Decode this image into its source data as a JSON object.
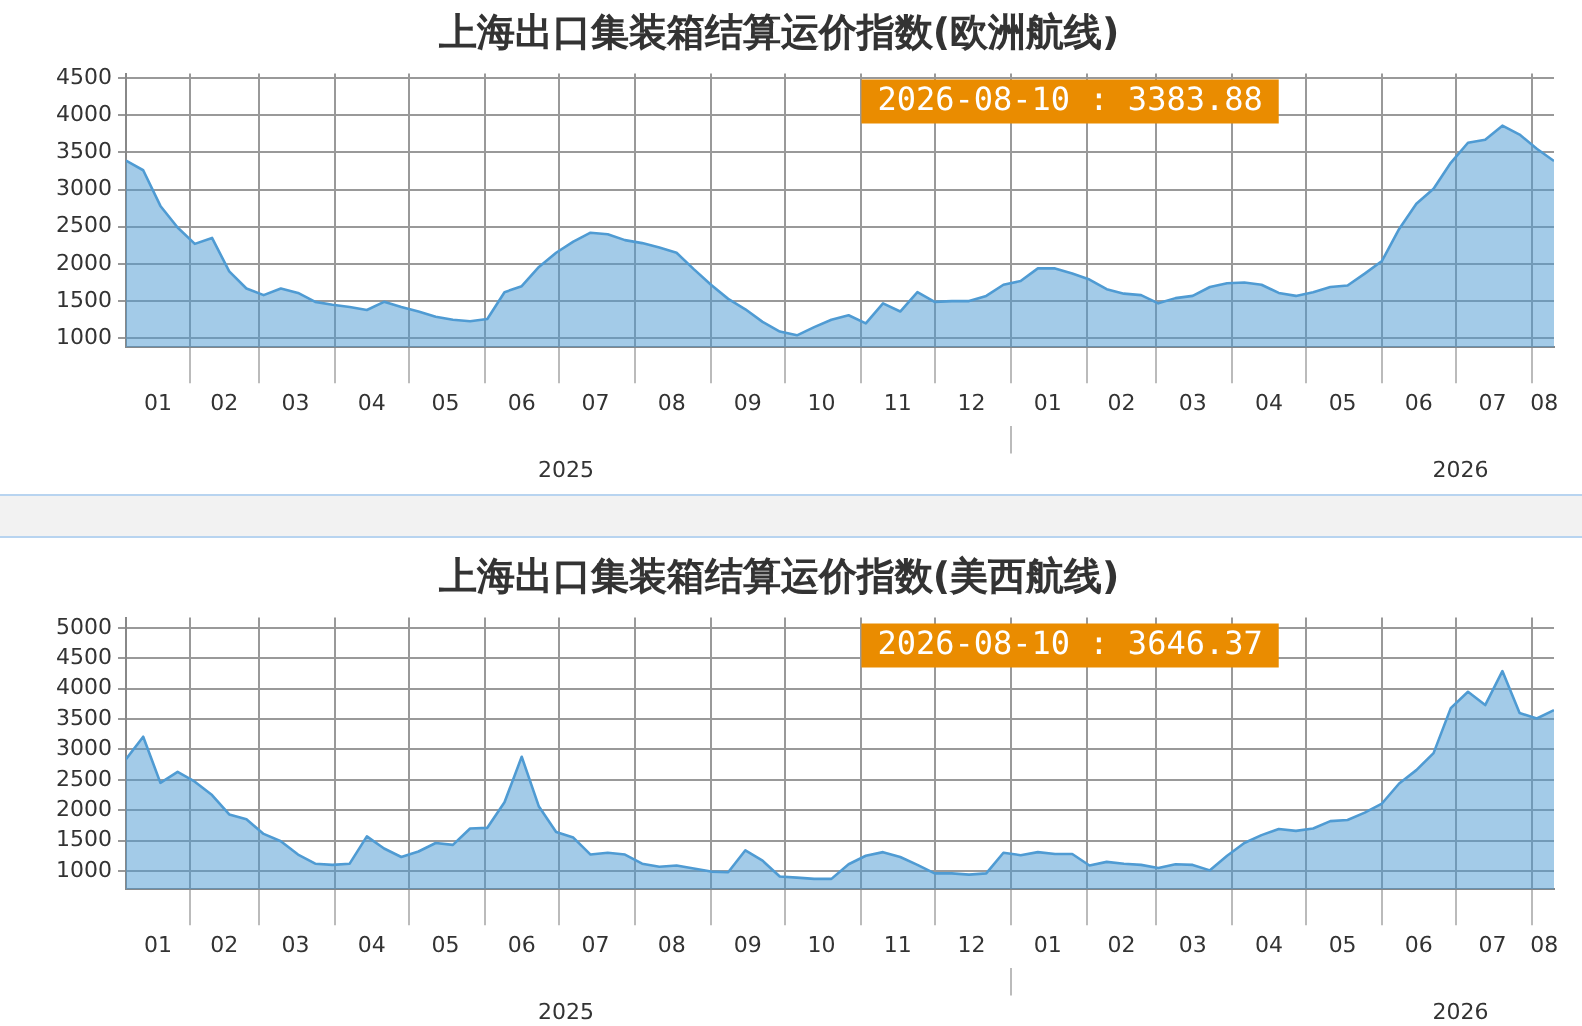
{
  "chart_data": [
    {
      "type": "area",
      "title": "上海出口集装箱结算运价指数(欧洲航线)",
      "x": [
        "2025-01-06",
        "2025-01-13",
        "2025-01-20",
        "2025-01-27",
        "2025-02-03",
        "2025-02-10",
        "2025-02-17",
        "2025-02-24",
        "2025-03-03",
        "2025-03-10",
        "2025-03-17",
        "2025-03-24",
        "2025-03-31",
        "2025-04-07",
        "2025-04-14",
        "2025-04-21",
        "2025-04-28",
        "2025-05-05",
        "2025-05-12",
        "2025-05-19",
        "2025-05-26",
        "2025-06-02",
        "2025-06-09",
        "2025-06-16",
        "2025-06-23",
        "2025-06-30",
        "2025-07-07",
        "2025-07-14",
        "2025-07-21",
        "2025-07-28",
        "2025-08-04",
        "2025-08-11",
        "2025-08-18",
        "2025-08-25",
        "2025-09-01",
        "2025-09-08",
        "2025-09-15",
        "2025-09-22",
        "2025-09-29",
        "2025-10-06",
        "2025-10-13",
        "2025-10-20",
        "2025-10-27",
        "2025-11-03",
        "2025-11-10",
        "2025-11-17",
        "2025-11-24",
        "2025-12-01",
        "2025-12-08",
        "2025-12-15",
        "2025-12-22",
        "2025-12-29",
        "2026-01-05",
        "2026-01-12",
        "2026-01-19",
        "2026-01-26",
        "2026-02-02",
        "2026-02-09",
        "2026-02-16",
        "2026-02-23",
        "2026-03-02",
        "2026-03-09",
        "2026-03-16",
        "2026-03-23",
        "2026-03-30",
        "2026-04-06",
        "2026-04-13",
        "2026-04-20",
        "2026-04-27",
        "2026-05-04",
        "2026-05-11",
        "2026-05-18",
        "2026-05-25",
        "2026-06-01",
        "2026-06-08",
        "2026-06-15",
        "2026-06-22",
        "2026-06-29",
        "2026-07-06",
        "2026-07-13",
        "2026-07-20",
        "2026-07-27",
        "2026-08-03",
        "2026-08-10"
      ],
      "series": [
        {
          "color": "#4f9bd3",
          "values": [
            3390,
            3260,
            2780,
            2490,
            2270,
            2350,
            1900,
            1670,
            1580,
            1670,
            1610,
            1490,
            1450,
            1420,
            1380,
            1490,
            1420,
            1360,
            1290,
            1250,
            1230,
            1260,
            1620,
            1700,
            1960,
            2150,
            2300,
            2420,
            2400,
            2320,
            2280,
            2220,
            2150,
            1930,
            1720,
            1530,
            1390,
            1220,
            1090,
            1040,
            1150,
            1250,
            1310,
            1200,
            1470,
            1360,
            1620,
            1490,
            1500,
            1500,
            1570,
            1720,
            1770,
            1940,
            1940,
            1870,
            1790,
            1660,
            1600,
            1580,
            1470,
            1540,
            1570,
            1690,
            1740,
            1750,
            1720,
            1610,
            1570,
            1620,
            1690,
            1710,
            1870,
            2040,
            2470,
            2810,
            3010,
            3360,
            3630,
            3670,
            3860,
            3740,
            3550,
            3383.88
          ]
        }
      ],
      "xlim": [
        "2025-01-06",
        "2026-08-10"
      ],
      "xticks": [
        {
          "value": "2025-01-19",
          "label": "01"
        },
        {
          "value": "2025-02-01",
          "label": null
        },
        {
          "value": "2025-02-15",
          "label": "02"
        },
        {
          "value": "2025-03-01",
          "label": null
        },
        {
          "value": "2025-03-16",
          "label": "03"
        },
        {
          "value": "2025-04-01",
          "label": null
        },
        {
          "value": "2025-04-16",
          "label": "04"
        },
        {
          "value": "2025-05-01",
          "label": null
        },
        {
          "value": "2025-05-16",
          "label": "05"
        },
        {
          "value": "2025-06-01",
          "label": null
        },
        {
          "value": "2025-06-16",
          "label": "06"
        },
        {
          "value": "2025-07-01",
          "label": null
        },
        {
          "value": "2025-07-16",
          "label": "07"
        },
        {
          "value": "2025-08-01",
          "label": null
        },
        {
          "value": "2025-08-16",
          "label": "08"
        },
        {
          "value": "2025-09-01",
          "label": null
        },
        {
          "value": "2025-09-16",
          "label": "09"
        },
        {
          "value": "2025-10-01",
          "label": null
        },
        {
          "value": "2025-10-16",
          "label": "10"
        },
        {
          "value": "2025-11-01",
          "label": null
        },
        {
          "value": "2025-11-16",
          "label": "11"
        },
        {
          "value": "2025-12-01",
          "label": null
        },
        {
          "value": "2025-12-16",
          "label": "12"
        },
        {
          "value": "2026-01-01",
          "label": null
        },
        {
          "value": "2026-01-16",
          "label": "01"
        },
        {
          "value": "2026-02-01",
          "label": null
        },
        {
          "value": "2026-02-15",
          "label": "02"
        },
        {
          "value": "2026-03-01",
          "label": null
        },
        {
          "value": "2026-03-16",
          "label": "03"
        },
        {
          "value": "2026-04-01",
          "label": null
        },
        {
          "value": "2026-04-16",
          "label": "04"
        },
        {
          "value": "2026-05-01",
          "label": null
        },
        {
          "value": "2026-05-16",
          "label": "05"
        },
        {
          "value": "2026-06-01",
          "label": null
        },
        {
          "value": "2026-06-16",
          "label": "06"
        },
        {
          "value": "2026-07-01",
          "label": null
        },
        {
          "value": "2026-07-16",
          "label": "07"
        },
        {
          "value": "2026-08-01",
          "label": null
        },
        {
          "value": "2026-08-06",
          "label": "08"
        }
      ],
      "x2lim": [
        "2025-01-06",
        "2026-08-10"
      ],
      "x2ticks": [
        {
          "value": "2025-07-04",
          "label": "2025"
        },
        {
          "value": "2026-01-01",
          "label": null
        },
        {
          "value": "2026-07-03",
          "label": "2026"
        }
      ],
      "ylim": [
        880,
        4560
      ],
      "yticks": [
        1000,
        1500,
        2000,
        2500,
        3000,
        3500,
        4000,
        4500
      ],
      "grid": true,
      "annotations": [
        "2026-08-10 : 3383.88"
      ]
    },
    {
      "type": "area",
      "title": "上海出口集装箱结算运价指数(美西航线)",
      "x": [
        "2025-01-06",
        "2025-01-13",
        "2025-01-20",
        "2025-01-27",
        "2025-02-03",
        "2025-02-10",
        "2025-02-17",
        "2025-02-24",
        "2025-03-03",
        "2025-03-10",
        "2025-03-17",
        "2025-03-24",
        "2025-03-31",
        "2025-04-07",
        "2025-04-14",
        "2025-04-21",
        "2025-04-28",
        "2025-05-05",
        "2025-05-12",
        "2025-05-19",
        "2025-05-26",
        "2025-06-02",
        "2025-06-09",
        "2025-06-16",
        "2025-06-23",
        "2025-06-30",
        "2025-07-07",
        "2025-07-14",
        "2025-07-21",
        "2025-07-28",
        "2025-08-04",
        "2025-08-11",
        "2025-08-18",
        "2025-08-25",
        "2025-09-01",
        "2025-09-08",
        "2025-09-15",
        "2025-09-22",
        "2025-09-29",
        "2025-10-06",
        "2025-10-13",
        "2025-10-20",
        "2025-10-27",
        "2025-11-03",
        "2025-11-10",
        "2025-11-17",
        "2025-11-24",
        "2025-12-01",
        "2025-12-08",
        "2025-12-15",
        "2025-12-22",
        "2025-12-29",
        "2026-01-05",
        "2026-01-12",
        "2026-01-19",
        "2026-01-26",
        "2026-02-02",
        "2026-02-09",
        "2026-02-16",
        "2026-02-23",
        "2026-03-02",
        "2026-03-09",
        "2026-03-16",
        "2026-03-23",
        "2026-03-30",
        "2026-04-06",
        "2026-04-13",
        "2026-04-20",
        "2026-04-27",
        "2026-05-04",
        "2026-05-11",
        "2026-05-18",
        "2026-05-25",
        "2026-06-01",
        "2026-06-08",
        "2026-06-15",
        "2026-06-22",
        "2026-06-29",
        "2026-07-06",
        "2026-07-13",
        "2026-07-20",
        "2026-07-27",
        "2026-08-03",
        "2026-08-10"
      ],
      "series": [
        {
          "color": "#4f9bd3",
          "values": [
            2840,
            3210,
            2450,
            2630,
            2470,
            2250,
            1930,
            1850,
            1610,
            1490,
            1270,
            1120,
            1100,
            1120,
            1570,
            1370,
            1230,
            1320,
            1460,
            1430,
            1700,
            1710,
            2130,
            2880,
            2060,
            1640,
            1550,
            1270,
            1300,
            1270,
            1120,
            1070,
            1090,
            1040,
            990,
            980,
            1340,
            1170,
            910,
            890,
            870,
            870,
            1110,
            1250,
            1310,
            1230,
            1100,
            960,
            960,
            940,
            960,
            1300,
            1260,
            1310,
            1280,
            1280,
            1090,
            1150,
            1120,
            1100,
            1050,
            1110,
            1100,
            1010,
            1250,
            1460,
            1590,
            1690,
            1660,
            1700,
            1820,
            1840,
            1960,
            2110,
            2440,
            2660,
            2940,
            3680,
            3950,
            3730,
            4290,
            3600,
            3510,
            3646.37
          ]
        }
      ],
      "xlim": [
        "2025-01-06",
        "2026-08-10"
      ],
      "xticks": [
        {
          "value": "2025-01-19",
          "label": "01"
        },
        {
          "value": "2025-02-01",
          "label": null
        },
        {
          "value": "2025-02-15",
          "label": "02"
        },
        {
          "value": "2025-03-01",
          "label": null
        },
        {
          "value": "2025-03-16",
          "label": "03"
        },
        {
          "value": "2025-04-01",
          "label": null
        },
        {
          "value": "2025-04-16",
          "label": "04"
        },
        {
          "value": "2025-05-01",
          "label": null
        },
        {
          "value": "2025-05-16",
          "label": "05"
        },
        {
          "value": "2025-06-01",
          "label": null
        },
        {
          "value": "2025-06-16",
          "label": "06"
        },
        {
          "value": "2025-07-01",
          "label": null
        },
        {
          "value": "2025-07-16",
          "label": "07"
        },
        {
          "value": "2025-08-01",
          "label": null
        },
        {
          "value": "2025-08-16",
          "label": "08"
        },
        {
          "value": "2025-09-01",
          "label": null
        },
        {
          "value": "2025-09-16",
          "label": "09"
        },
        {
          "value": "2025-10-01",
          "label": null
        },
        {
          "value": "2025-10-16",
          "label": "10"
        },
        {
          "value": "2025-11-01",
          "label": null
        },
        {
          "value": "2025-11-16",
          "label": "11"
        },
        {
          "value": "2025-12-01",
          "label": null
        },
        {
          "value": "2025-12-16",
          "label": "12"
        },
        {
          "value": "2026-01-01",
          "label": null
        },
        {
          "value": "2026-01-16",
          "label": "01"
        },
        {
          "value": "2026-02-01",
          "label": null
        },
        {
          "value": "2026-02-15",
          "label": "02"
        },
        {
          "value": "2026-03-01",
          "label": null
        },
        {
          "value": "2026-03-16",
          "label": "03"
        },
        {
          "value": "2026-04-01",
          "label": null
        },
        {
          "value": "2026-04-16",
          "label": "04"
        },
        {
          "value": "2026-05-01",
          "label": null
        },
        {
          "value": "2026-05-16",
          "label": "05"
        },
        {
          "value": "2026-06-01",
          "label": null
        },
        {
          "value": "2026-06-16",
          "label": "06"
        },
        {
          "value": "2026-07-01",
          "label": null
        },
        {
          "value": "2026-07-16",
          "label": "07"
        },
        {
          "value": "2026-08-01",
          "label": null
        },
        {
          "value": "2026-08-06",
          "label": "08"
        }
      ],
      "x2lim": [
        "2025-01-06",
        "2026-08-10"
      ],
      "x2ticks": [
        {
          "value": "2025-07-04",
          "label": "2025"
        },
        {
          "value": "2026-01-01",
          "label": null
        },
        {
          "value": "2026-07-03",
          "label": "2026"
        }
      ],
      "ylim": [
        700,
        5170
      ],
      "yticks": [
        1000,
        1500,
        2000,
        2500,
        3000,
        3500,
        4000,
        4500,
        5000
      ],
      "grid": true,
      "annotations": [
        "2026-08-10 : 3646.37"
      ]
    }
  ]
}
